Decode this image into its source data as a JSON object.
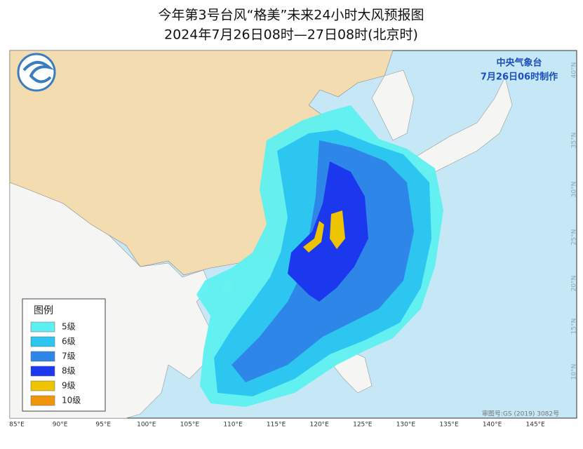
{
  "header": {
    "title": "今年第3号台风“格美”未来24小时大风预报图",
    "subtitle": "2024年7月26日08时—27日08时(北京时)"
  },
  "agency": {
    "name": "中央气象台",
    "issued": "7月26日06时制作"
  },
  "legend": {
    "title": "图例",
    "items": [
      {
        "label": "5级",
        "color": "#5ef0f0"
      },
      {
        "label": "6级",
        "color": "#2cc6f0"
      },
      {
        "label": "7级",
        "color": "#2e86e8"
      },
      {
        "label": "8级",
        "color": "#1c38ee"
      },
      {
        "label": "9级",
        "color": "#eec400"
      },
      {
        "label": "10级",
        "color": "#f0960e"
      }
    ]
  },
  "longitudes": [
    "85°E",
    "90°E",
    "95°E",
    "100°E",
    "105°E",
    "110°E",
    "115°E",
    "120°E",
    "125°E",
    "130°E",
    "135°E",
    "140°E",
    "145°E"
  ],
  "latitudes": [
    "40°N",
    "35°N",
    "30°N",
    "25°N",
    "20°N",
    "15°N",
    "10°N"
  ],
  "review_number": "审图号:GS (2019) 3082号"
}
